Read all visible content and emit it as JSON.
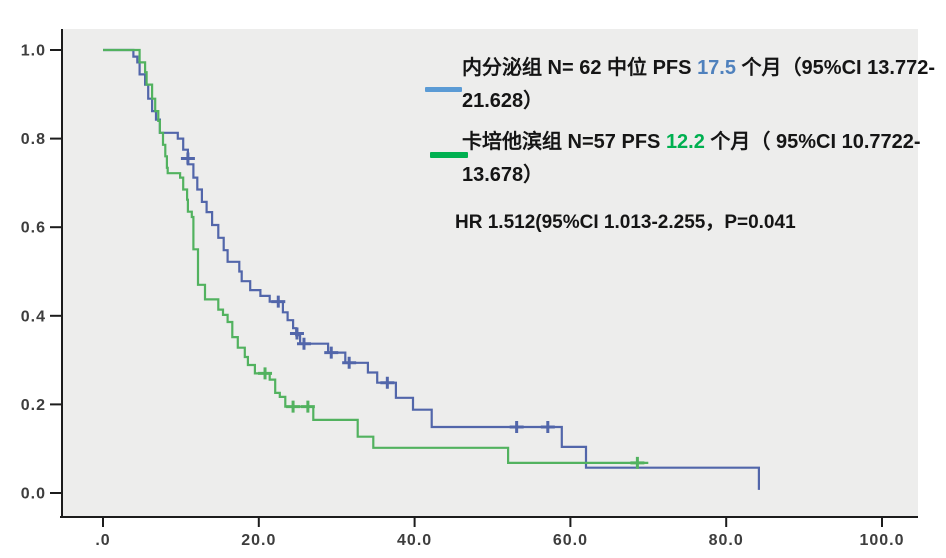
{
  "figure": {
    "background": "#ffffff",
    "plot_background": "#ededec",
    "axis_color": "#1c1c1c",
    "tick_label_color": "#3d3d3d"
  },
  "legend": {
    "entries": [
      {
        "swatch_color": "#5b9bd5",
        "prefix": "内分泌组  N= 62  中位 PFS ",
        "value": "17.5",
        "value_color": "#4f81bd",
        "suffix": " 个月（95%CI 13.772-21.628）"
      },
      {
        "swatch_color": "#00b050",
        "prefix": "卡培他滨组  N=57 PFS ",
        "value": "12.2",
        "value_color": "#00b050",
        "suffix": " 个月（ 95%CI 10.7722-13.678）"
      }
    ],
    "stats_line": "HR 1.512(95%CI 1.013-2.255，P=0.041"
  },
  "chart_data": {
    "type": "line",
    "subtype": "kaplan-meier-step",
    "title": "",
    "xlabel": "",
    "ylabel": "",
    "grid": false,
    "legend_position": "top-right-inside",
    "x_axis": {
      "range": [
        0,
        100
      ],
      "tick_values": [
        0,
        20,
        40,
        60,
        80,
        100
      ],
      "tick_labels": [
        ".0",
        "20.0",
        "40.0",
        "60.0",
        "80.0",
        "100.0"
      ]
    },
    "y_axis": {
      "range": [
        0,
        1
      ],
      "tick_values": [
        0,
        0.2,
        0.4,
        0.6,
        0.8,
        1.0
      ],
      "tick_labels": [
        "0.0",
        "0.2",
        "0.4",
        "0.6",
        "0.8",
        "1.0"
      ]
    },
    "series": [
      {
        "name": "内分泌组",
        "n": 62,
        "median_pfs_months": 17.5,
        "ci95": "13.772-21.628",
        "color": "#5266aa",
        "steps": [
          [
            0,
            1.0
          ],
          [
            3.9,
            0.985
          ],
          [
            4.4,
            0.972
          ],
          [
            4.7,
            0.945
          ],
          [
            5.4,
            0.922
          ],
          [
            5.8,
            0.89
          ],
          [
            6.3,
            0.862
          ],
          [
            6.8,
            0.843
          ],
          [
            7.3,
            0.813
          ],
          [
            9.6,
            0.8
          ],
          [
            10.3,
            0.775
          ],
          [
            10.9,
            0.742
          ],
          [
            11.6,
            0.712
          ],
          [
            12.1,
            0.685
          ],
          [
            12.7,
            0.657
          ],
          [
            13.3,
            0.634
          ],
          [
            14.0,
            0.605
          ],
          [
            14.8,
            0.576
          ],
          [
            15.5,
            0.548
          ],
          [
            16.0,
            0.522
          ],
          [
            17.5,
            0.5
          ],
          [
            17.8,
            0.478
          ],
          [
            18.9,
            0.458
          ],
          [
            20.2,
            0.445
          ],
          [
            21.4,
            0.432
          ],
          [
            23.1,
            0.408
          ],
          [
            23.7,
            0.39
          ],
          [
            24.4,
            0.372
          ],
          [
            24.8,
            0.356
          ],
          [
            25.3,
            0.337
          ],
          [
            28.9,
            0.317
          ],
          [
            31.1,
            0.294
          ],
          [
            34.0,
            0.272
          ],
          [
            35.2,
            0.249
          ],
          [
            37.6,
            0.215
          ],
          [
            39.8,
            0.188
          ],
          [
            42.2,
            0.149
          ],
          [
            58.9,
            0.104
          ],
          [
            62.0,
            0.057
          ],
          [
            84.2,
            0.007
          ]
        ],
        "censors": [
          [
            10.9,
            0.755
          ],
          [
            22.5,
            0.432
          ],
          [
            24.9,
            0.36
          ],
          [
            25.8,
            0.337
          ],
          [
            29.3,
            0.317
          ],
          [
            31.6,
            0.294
          ],
          [
            36.5,
            0.249
          ],
          [
            53.1,
            0.149
          ],
          [
            57.1,
            0.149
          ]
        ]
      },
      {
        "name": "卡培他滨组",
        "n": 57,
        "median_pfs_months": 12.2,
        "ci95": "10.7722-13.678",
        "color": "#52b25f",
        "end_t": 70,
        "steps": [
          [
            0,
            1.0
          ],
          [
            4.7,
            0.972
          ],
          [
            5.4,
            0.95
          ],
          [
            5.6,
            0.922
          ],
          [
            6.3,
            0.89
          ],
          [
            6.7,
            0.862
          ],
          [
            7.1,
            0.84
          ],
          [
            7.3,
            0.813
          ],
          [
            7.7,
            0.786
          ],
          [
            8.0,
            0.76
          ],
          [
            8.2,
            0.734
          ],
          [
            8.3,
            0.722
          ],
          [
            9.9,
            0.712
          ],
          [
            10.3,
            0.685
          ],
          [
            10.8,
            0.662
          ],
          [
            10.9,
            0.635
          ],
          [
            11.4,
            0.623
          ],
          [
            11.6,
            0.55
          ],
          [
            12.2,
            0.47
          ],
          [
            13.1,
            0.437
          ],
          [
            14.8,
            0.414
          ],
          [
            15.4,
            0.402
          ],
          [
            16.0,
            0.386
          ],
          [
            16.6,
            0.352
          ],
          [
            17.3,
            0.328
          ],
          [
            18.2,
            0.307
          ],
          [
            18.6,
            0.289
          ],
          [
            19.5,
            0.27
          ],
          [
            21.4,
            0.256
          ],
          [
            22.1,
            0.226
          ],
          [
            22.7,
            0.217
          ],
          [
            23.4,
            0.195
          ],
          [
            27.0,
            0.165
          ],
          [
            32.7,
            0.127
          ],
          [
            34.7,
            0.102
          ],
          [
            52.0,
            0.068
          ]
        ],
        "censors": [
          [
            20.8,
            0.27
          ],
          [
            24.4,
            0.195
          ],
          [
            26.3,
            0.195
          ],
          [
            68.6,
            0.068
          ]
        ]
      }
    ],
    "stats": "HR 1.512(95%CI 1.013-2.255，P=0.041"
  }
}
